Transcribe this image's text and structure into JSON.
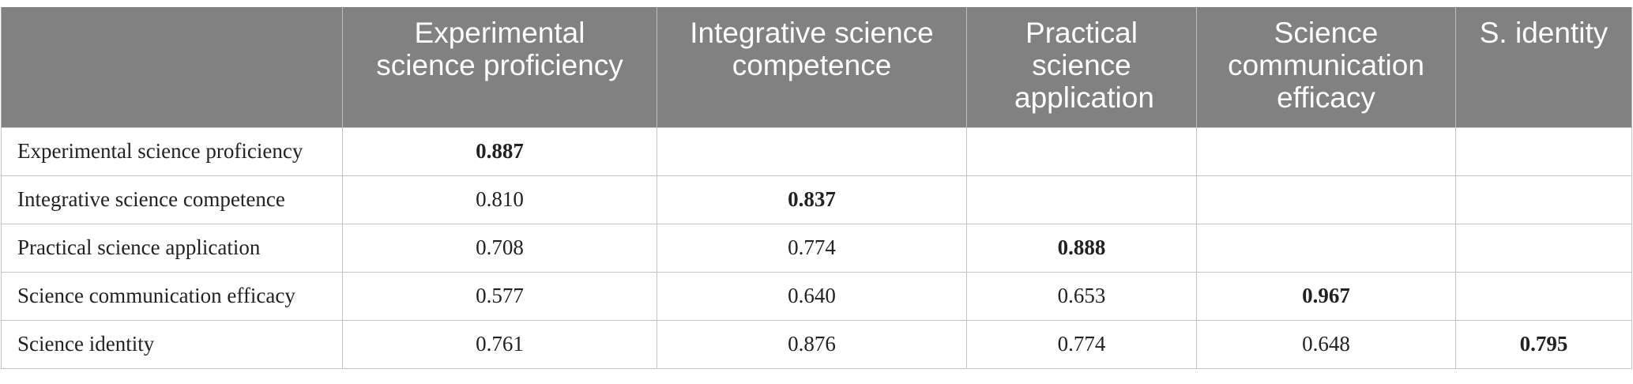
{
  "table": {
    "headers": [
      "",
      "Experimental science proficiency",
      "Integrative science competence",
      "Practical science application",
      "Science communication efficacy",
      "S. identity"
    ],
    "rows": [
      {
        "label": "Experimental science proficiency",
        "values": [
          "0.887",
          "",
          "",
          "",
          ""
        ]
      },
      {
        "label": "Integrative science competence",
        "values": [
          "0.810",
          "0.837",
          "",
          "",
          ""
        ]
      },
      {
        "label": "Practical science application",
        "values": [
          "0.708",
          "0.774",
          "0.888",
          "",
          ""
        ]
      },
      {
        "label": "Science communication efficacy",
        "values": [
          "0.577",
          "0.640",
          "0.653",
          "0.967",
          ""
        ]
      },
      {
        "label": "Science identity",
        "values": [
          "0.761",
          "0.876",
          "0.774",
          "0.648",
          "0.795"
        ]
      }
    ]
  }
}
